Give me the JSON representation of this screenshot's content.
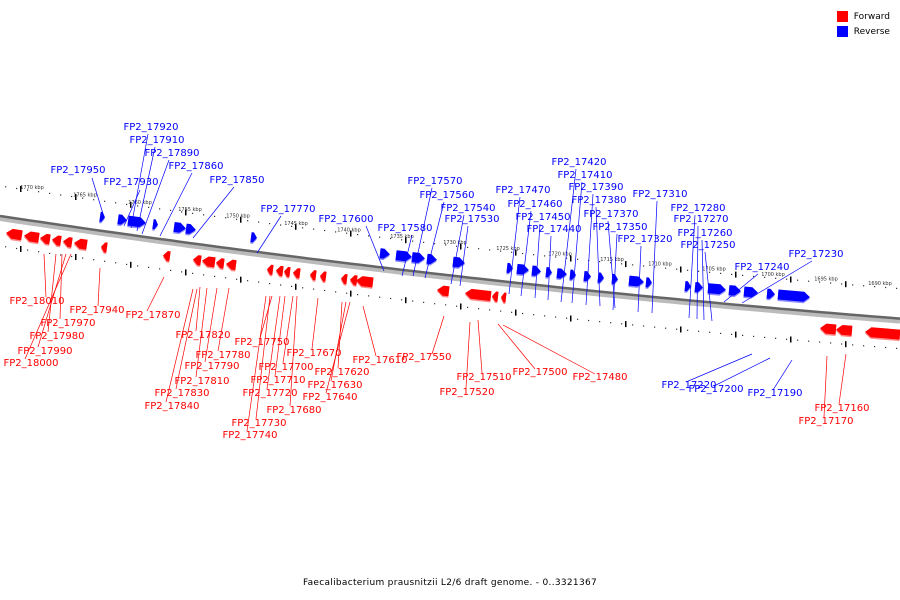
{
  "legend": {
    "forward_label": "Forward",
    "reverse_label": "Reverse",
    "forward_color": "#ff0000",
    "reverse_color": "#0000ff"
  },
  "caption": "Faecalibacterium prausnitzii L2/6 draft genome. - 0..3321367",
  "scale_labels": [
    "1770 kbp",
    "1765 kbp",
    "1760 kbp",
    "1755 kbp",
    "1750 kbp",
    "1745 kbp",
    "1740 kbp",
    "1735 kbp",
    "1730 kbp",
    "1725 kbp",
    "1720 kbp",
    "1715 kbp",
    "1710 kbp",
    "1705 kbp",
    "1700 kbp",
    "1695 kbp",
    "1690 kbp"
  ],
  "reverse_genes": [
    "FP2_17950",
    "FP2_17930",
    "FP2_17920",
    "FP2_17910",
    "FP2_17890",
    "FP2_17860",
    "FP2_17850",
    "FP2_17770",
    "FP2_17600",
    "FP2_17580",
    "FP2_17570",
    "FP2_17560",
    "FP2_17540",
    "FP2_17530",
    "FP2_17470",
    "FP2_17460",
    "FP2_17450",
    "FP2_17440",
    "FP2_17420",
    "FP2_17410",
    "FP2_17390",
    "FP2_17380",
    "FP2_17370",
    "FP2_17350",
    "FP2_17320",
    "FP2_17310",
    "FP2_17280",
    "FP2_17270",
    "FP2_17260",
    "FP2_17250",
    "FP2_17240",
    "FP2_17230",
    "FP2_17220",
    "FP2_17200",
    "FP2_17190"
  ],
  "forward_genes": [
    "FP2_18010",
    "FP2_17970",
    "FP2_17980",
    "FP2_17990",
    "FP2_18000",
    "FP2_17940",
    "FP2_17870",
    "FP2_17820",
    "FP2_17780",
    "FP2_17790",
    "FP2_17810",
    "FP2_17830",
    "FP2_17840",
    "FP2_17750",
    "FP2_17700",
    "FP2_17710",
    "FP2_17720",
    "FP2_17730",
    "FP2_17740",
    "FP2_17680",
    "FP2_17670",
    "FP2_17620",
    "FP2_17630",
    "FP2_17640",
    "FP2_17610",
    "FP2_17550",
    "FP2_17510",
    "FP2_17520",
    "FP2_17500",
    "FP2_17480",
    "FP2_17160",
    "FP2_17170"
  ]
}
